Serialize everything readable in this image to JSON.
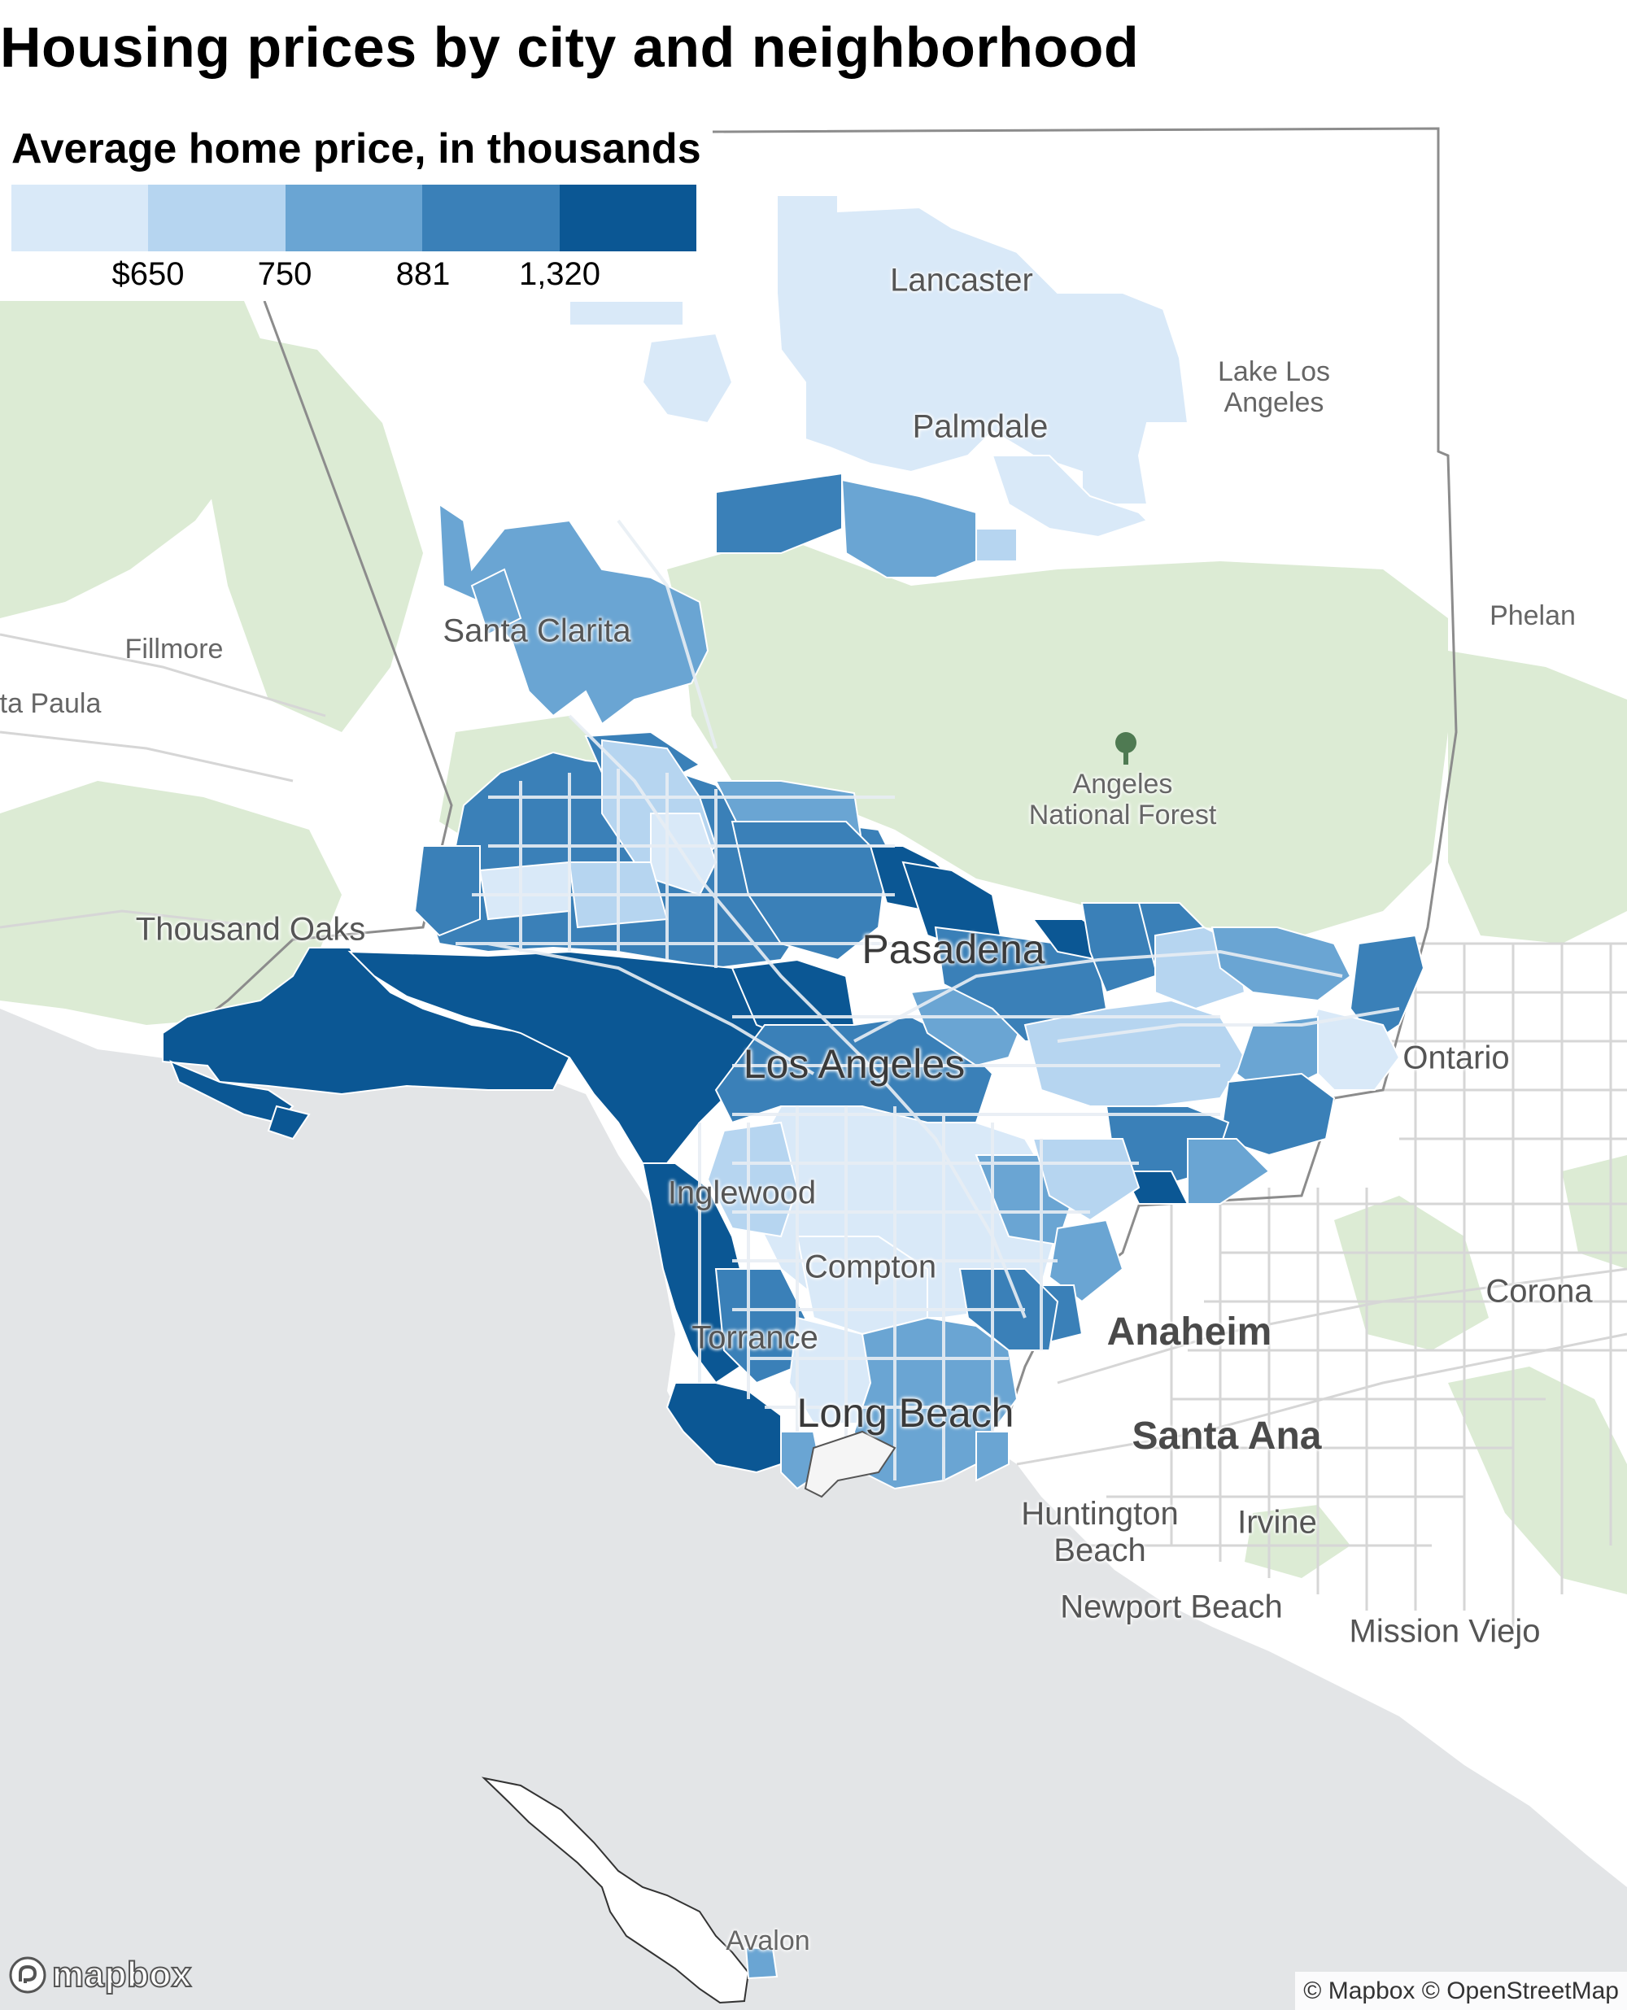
{
  "title": "Housing prices by city and neighborhood",
  "legend": {
    "title": "Average home price, in thousands",
    "colors": [
      "#d9e9f8",
      "#b6d5f0",
      "#6aa5d3",
      "#3a80b8",
      "#0b5794"
    ],
    "breaks": [
      "$650",
      "750",
      "881",
      "1,320"
    ]
  },
  "map_colors": {
    "ocean": "#e3e5e7",
    "land": "#ffffff",
    "park": "#dcebd4",
    "road": "#ffffff",
    "outside_road": "#d6d6d6",
    "county_line": "#8c8c8c"
  },
  "places": [
    {
      "id": "lancaster",
      "label": "Lancaster",
      "tier": "medium"
    },
    {
      "id": "palmdale",
      "label": "Palmdale",
      "tier": "medium"
    },
    {
      "id": "lake-los-angeles",
      "label": "Lake Los\nAngeles",
      "tier": "small"
    },
    {
      "id": "phelan",
      "label": "Phelan",
      "tier": "small"
    },
    {
      "id": "santa-clarita",
      "label": "Santa Clarita",
      "tier": "medium"
    },
    {
      "id": "fillmore",
      "label": "Fillmore",
      "tier": "small"
    },
    {
      "id": "santa-paula",
      "label": "ta Paula",
      "tier": "small"
    },
    {
      "id": "angeles-nf",
      "label": "Angeles\nNational Forest",
      "tier": "small"
    },
    {
      "id": "thousand-oaks",
      "label": "Thousand Oaks",
      "tier": "medium"
    },
    {
      "id": "pasadena",
      "label": "Pasadena",
      "tier": "major"
    },
    {
      "id": "los-angeles",
      "label": "Los Angeles",
      "tier": "major"
    },
    {
      "id": "ontario",
      "label": "Ontario",
      "tier": "medium"
    },
    {
      "id": "inglewood",
      "label": "Inglewood",
      "tier": "medium"
    },
    {
      "id": "compton",
      "label": "Compton",
      "tier": "medium"
    },
    {
      "id": "corona",
      "label": "Corona",
      "tier": "medium"
    },
    {
      "id": "anaheim",
      "label": "Anaheim",
      "tier": "bold"
    },
    {
      "id": "torrance",
      "label": "Torrance",
      "tier": "medium"
    },
    {
      "id": "long-beach",
      "label": "Long Beach",
      "tier": "major"
    },
    {
      "id": "santa-ana",
      "label": "Santa Ana",
      "tier": "bold"
    },
    {
      "id": "huntington-beach",
      "label": "Huntington\nBeach",
      "tier": "medium"
    },
    {
      "id": "irvine",
      "label": "Irvine",
      "tier": "medium"
    },
    {
      "id": "newport-beach",
      "label": "Newport Beach",
      "tier": "medium"
    },
    {
      "id": "mission-viejo",
      "label": "Mission Viejo",
      "tier": "medium"
    },
    {
      "id": "avalon",
      "label": "Avalon",
      "tier": "small"
    }
  ],
  "logo": {
    "text": "mapbox",
    "icon": "mapbox-logo-icon"
  },
  "attribution": "© Mapbox © OpenStreetMap"
}
